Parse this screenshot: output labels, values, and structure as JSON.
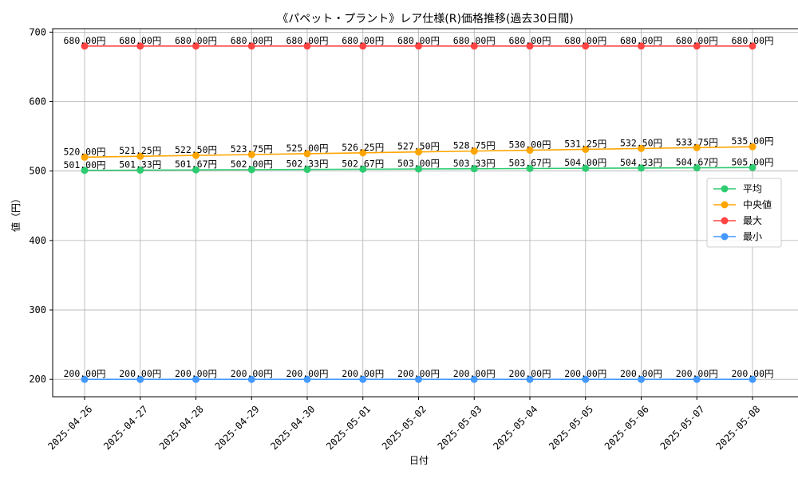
{
  "chart_data": {
    "type": "line",
    "title": "《パペット・プラント》レア仕様(R)価格推移(過去30日間)",
    "xlabel": "日付",
    "ylabel": "値（円）",
    "ylim": [
      175,
      705
    ],
    "yticks": [
      200,
      300,
      400,
      500,
      600,
      700
    ],
    "grid": true,
    "legend_position": "center-right",
    "label_suffix": "円",
    "categories": [
      "2025-04-26",
      "2025-04-27",
      "2025-04-28",
      "2025-04-29",
      "2025-04-30",
      "2025-05-01",
      "2025-05-02",
      "2025-05-03",
      "2025-05-04",
      "2025-05-05",
      "2025-05-06",
      "2025-05-07",
      "2025-05-08"
    ],
    "series": [
      {
        "name": "平均",
        "color": "#2ecc71",
        "values": [
          501.0,
          501.33,
          501.67,
          502.0,
          502.33,
          502.67,
          503.0,
          503.33,
          503.67,
          504.0,
          504.33,
          504.67,
          505.0
        ],
        "labels": [
          "501.00円",
          "501.33円",
          "501.67円",
          "502.00円",
          "502.33円",
          "502.67円",
          "503.00円",
          "503.33円",
          "503.67円",
          "504.00円",
          "504.33円",
          "504.67円",
          "505.00円"
        ]
      },
      {
        "name": "中央値",
        "color": "#ffa500",
        "values": [
          520.0,
          521.25,
          522.5,
          523.75,
          525.0,
          526.25,
          527.5,
          528.75,
          530.0,
          531.25,
          532.5,
          533.75,
          535.0
        ],
        "labels": [
          "520.00円",
          "521.25円",
          "522.50円",
          "523.75円",
          "525.00円",
          "526.25円",
          "527.50円",
          "528.75円",
          "530.00円",
          "531.25円",
          "532.50円",
          "533.75円",
          "535.00円"
        ]
      },
      {
        "name": "最大",
        "color": "#ff4444",
        "values": [
          680,
          680,
          680,
          680,
          680,
          680,
          680,
          680,
          680,
          680,
          680,
          680,
          680
        ],
        "labels": [
          "680.00円",
          "680.00円",
          "680.00円",
          "680.00円",
          "680.00円",
          "680.00円",
          "680.00円",
          "680.00円",
          "680.00円",
          "680.00円",
          "680.00円",
          "680.00円",
          "680.00円"
        ]
      },
      {
        "name": "最小",
        "color": "#4499ff",
        "values": [
          200,
          200,
          200,
          200,
          200,
          200,
          200,
          200,
          200,
          200,
          200,
          200,
          200
        ],
        "labels": [
          "200.00円",
          "200.00円",
          "200.00円",
          "200.00円",
          "200.00円",
          "200.00円",
          "200.00円",
          "200.00円",
          "200.00円",
          "200.00円",
          "200.00円",
          "200.00円",
          "200.00円"
        ]
      }
    ]
  }
}
